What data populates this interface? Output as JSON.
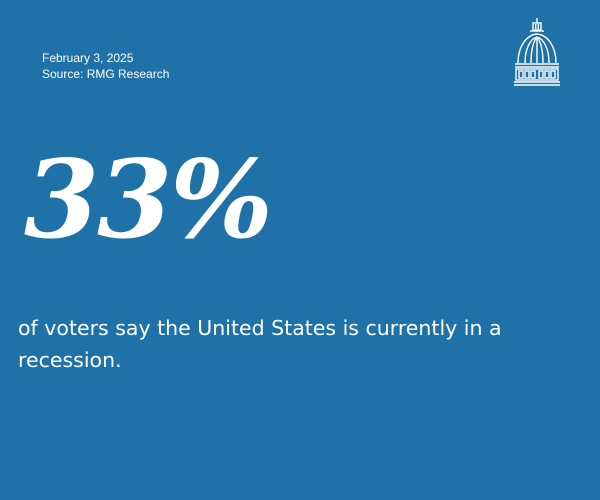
{
  "header": {
    "date": "February 3, 2025",
    "source": "Source: RMG Research"
  },
  "logo": {
    "icon": "capitol-dome-icon"
  },
  "stat": {
    "value": "33%",
    "caption": "of voters say the United States is currently in a recession."
  },
  "colors": {
    "background": "#1f72a8",
    "text": "#ffffff"
  }
}
